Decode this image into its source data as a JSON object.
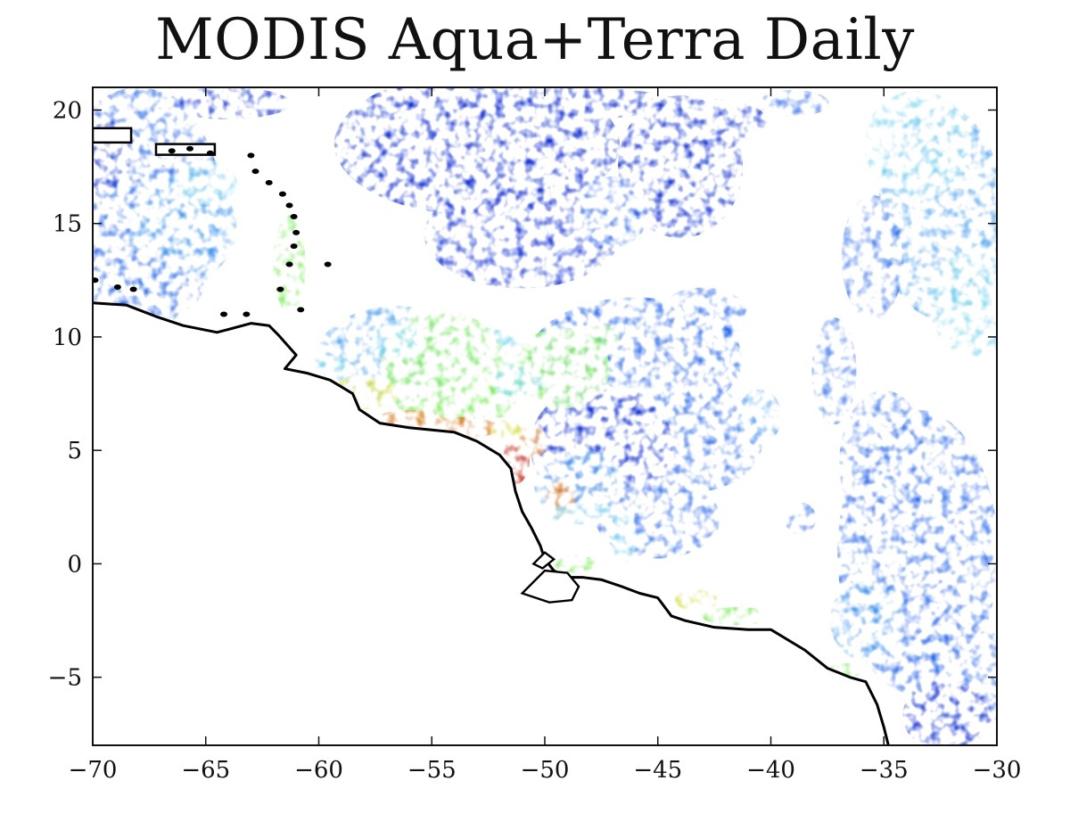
{
  "header": {
    "title": "MODIS Aqua+Terra Daily"
  },
  "chart_data": {
    "type": "heatmap",
    "title": "MODIS Aqua+Terra Daily",
    "xlabel": "",
    "ylabel": "",
    "xlim": [
      -70,
      -30
    ],
    "ylim": [
      -8,
      21
    ],
    "x_ticks": [
      -70,
      -65,
      -60,
      -55,
      -50,
      -45,
      -40,
      -35,
      -30
    ],
    "y_ticks": [
      -5,
      0,
      5,
      10,
      15,
      20
    ],
    "x_tick_labels": [
      "−70",
      "−65",
      "−60",
      "−55",
      "−50",
      "−45",
      "−40",
      "−35",
      "−30"
    ],
    "y_tick_labels": [
      "−5",
      "0",
      "5",
      "10",
      "15",
      "20"
    ],
    "colorscale": [
      "#1030d8",
      "#2f6ff0",
      "#4aa3f2",
      "#7ad8f0",
      "#7ef05a",
      "#d8e040",
      "#e07a20",
      "#c82818"
    ],
    "colors": {
      "coastline": "#000000",
      "background": "#ffffff"
    },
    "coastline": [
      [
        -70,
        11.5
      ],
      [
        -68.5,
        11.4
      ],
      [
        -67.2,
        10.9
      ],
      [
        -66,
        10.5
      ],
      [
        -64.5,
        10.2
      ],
      [
        -63,
        10.6
      ],
      [
        -62.2,
        10.5
      ],
      [
        -61.8,
        10.1
      ],
      [
        -61,
        9.2
      ],
      [
        -61.5,
        8.6
      ],
      [
        -60.5,
        8.4
      ],
      [
        -59.5,
        8.1
      ],
      [
        -58.5,
        7.5
      ],
      [
        -58.2,
        6.8
      ],
      [
        -57.3,
        6.2
      ],
      [
        -56,
        6.0
      ],
      [
        -55,
        5.9
      ],
      [
        -54,
        5.8
      ],
      [
        -53,
        5.4
      ],
      [
        -52,
        4.8
      ],
      [
        -51.5,
        4.2
      ],
      [
        -51.3,
        3.2
      ],
      [
        -51,
        2.3
      ],
      [
        -50.6,
        1.6
      ],
      [
        -50.2,
        0.8
      ],
      [
        -50,
        0.2
      ],
      [
        -49.6,
        -0.3
      ],
      [
        -49,
        -0.6
      ],
      [
        -48.3,
        -0.6
      ],
      [
        -47.5,
        -0.7
      ],
      [
        -46.6,
        -1.0
      ],
      [
        -45.8,
        -1.3
      ],
      [
        -45,
        -1.5
      ],
      [
        -44.4,
        -2.3
      ],
      [
        -43.8,
        -2.5
      ],
      [
        -42.5,
        -2.8
      ],
      [
        -41,
        -2.9
      ],
      [
        -40,
        -2.9
      ],
      [
        -39,
        -3.5
      ],
      [
        -38.5,
        -3.8
      ],
      [
        -37.5,
        -4.6
      ],
      [
        -36.5,
        -5.0
      ],
      [
        -35.8,
        -5.2
      ],
      [
        -35.3,
        -6.2
      ],
      [
        -35.0,
        -7.2
      ],
      [
        -34.8,
        -8.0
      ]
    ],
    "amazon_islands": [
      [
        [
          -51,
          -1.3
        ],
        [
          -50,
          -0.3
        ],
        [
          -49,
          -0.4
        ],
        [
          -48.5,
          -1.0
        ],
        [
          -48.8,
          -1.6
        ],
        [
          -49.8,
          -1.7
        ],
        [
          -51,
          -1.3
        ]
      ],
      [
        [
          -50.5,
          0.0
        ],
        [
          -50.0,
          0.5
        ],
        [
          -49.6,
          0.2
        ],
        [
          -50.1,
          -0.2
        ],
        [
          -50.5,
          0.0
        ]
      ]
    ],
    "islands": [
      [
        -66.5,
        18.2
      ],
      [
        -65.7,
        18.3
      ],
      [
        -64.8,
        18.1
      ],
      [
        -63,
        18.0
      ],
      [
        -62.8,
        17.3
      ],
      [
        -62.2,
        16.8
      ],
      [
        -61.6,
        16.3
      ],
      [
        -61.3,
        15.8
      ],
      [
        -61.1,
        15.3
      ],
      [
        -61,
        14.6
      ],
      [
        -61.1,
        14.0
      ],
      [
        -61.3,
        13.2
      ],
      [
        -61.7,
        12.1
      ],
      [
        -59.6,
        13.2
      ],
      [
        -60.8,
        11.2
      ],
      [
        -64.2,
        11.0
      ],
      [
        -68.9,
        12.2
      ],
      [
        -68.2,
        12.1
      ],
      [
        -69.9,
        12.5
      ],
      [
        -63.2,
        11.0
      ]
    ]
  }
}
